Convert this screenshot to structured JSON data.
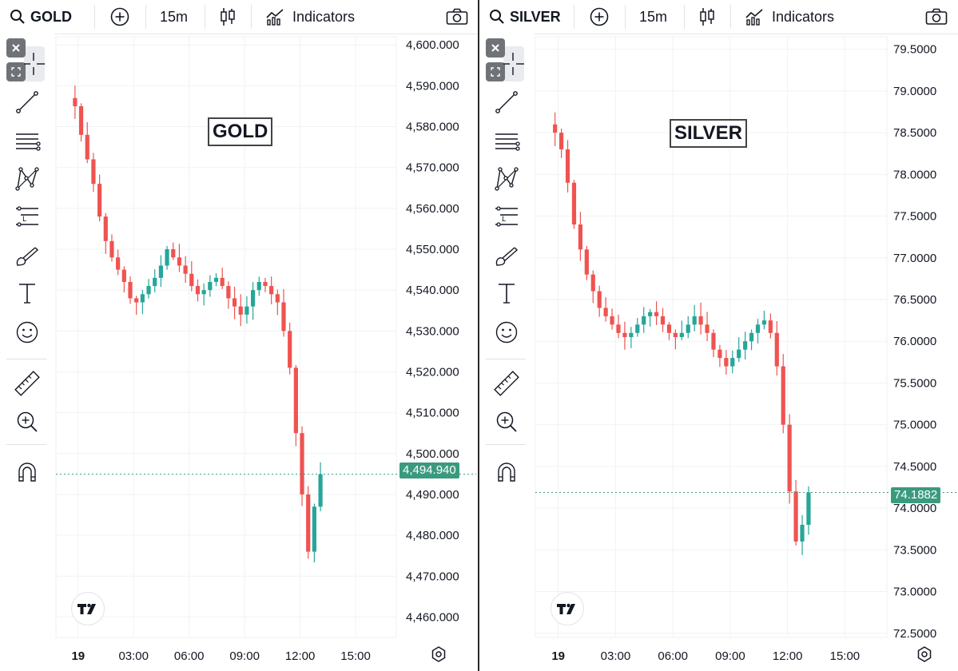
{
  "panels": [
    {
      "symbol": "GOLD",
      "interval": "15m",
      "indicators_label": "Indicators",
      "title_box": "GOLD",
      "current_price": "4,494.940",
      "colors": {
        "up": "#26a69a",
        "down": "#ef5350",
        "accent": "#3a9a7e"
      }
    },
    {
      "symbol": "SILVER",
      "interval": "15m",
      "indicators_label": "Indicators",
      "title_box": "SILVER",
      "current_price": "74.1882",
      "colors": {
        "up": "#26a69a",
        "down": "#ef5350",
        "accent": "#3a9a7e"
      }
    }
  ],
  "toolbar_icons": [
    "crosshair-icon",
    "trend-line-icon",
    "horizontal-lines-icon",
    "pattern-icon",
    "long-position-icon",
    "brush-icon",
    "text-icon",
    "emoji-icon",
    "ruler-icon",
    "zoom-in-icon",
    "magnet-icon"
  ],
  "chart_data": [
    {
      "type": "candlestick",
      "title": "GOLD",
      "x_ticks": [
        "19",
        "03:00",
        "06:00",
        "09:00",
        "12:00",
        "15:00"
      ],
      "y_ticks": [
        "4,460.000",
        "4,470.000",
        "4,480.000",
        "4,490.000",
        "4,500.000",
        "4,510.000",
        "4,520.000",
        "4,530.000",
        "4,540.000",
        "4,550.000",
        "4,560.000",
        "4,570.000",
        "4,580.000",
        "4,590.000",
        "4,600.000"
      ],
      "ylim": [
        4455,
        4602
      ],
      "xlim_hours": [
        -1.2,
        17.2
      ],
      "current_price": 4494.94,
      "price_line": [
        4587,
        4585,
        4578,
        4572,
        4566,
        4558,
        4552,
        4548,
        4545,
        4542,
        4538,
        4537,
        4539,
        4541,
        4543,
        4546,
        4550,
        4548,
        4546,
        4544,
        4541,
        4539,
        4540,
        4542,
        4543,
        4541,
        4538,
        4536,
        4534,
        4536,
        4540,
        4542,
        4541,
        4539,
        4537,
        4530,
        4521,
        4505,
        4490,
        4476,
        4487,
        4494.94
      ]
    },
    {
      "type": "candlestick",
      "title": "SILVER",
      "x_ticks": [
        "19",
        "03:00",
        "06:00",
        "09:00",
        "12:00",
        "15:00"
      ],
      "y_ticks": [
        "72.5000",
        "73.0000",
        "73.5000",
        "74.0000",
        "74.5000",
        "75.0000",
        "75.5000",
        "76.0000",
        "76.5000",
        "77.0000",
        "77.5000",
        "78.0000",
        "78.5000",
        "79.0000",
        "79.5000"
      ],
      "ylim": [
        72.45,
        79.65
      ],
      "xlim_hours": [
        -1.2,
        17.2
      ],
      "current_price": 74.1882,
      "price_line": [
        78.6,
        78.5,
        78.3,
        77.9,
        77.4,
        77.1,
        76.8,
        76.6,
        76.4,
        76.3,
        76.2,
        76.1,
        76.05,
        76.1,
        76.2,
        76.3,
        76.35,
        76.3,
        76.2,
        76.1,
        76.05,
        76.1,
        76.2,
        76.3,
        76.2,
        76.1,
        75.9,
        75.8,
        75.7,
        75.8,
        75.9,
        76.0,
        76.1,
        76.2,
        76.25,
        76.1,
        75.7,
        75.0,
        74.2,
        73.6,
        73.8,
        74.1882
      ]
    }
  ]
}
